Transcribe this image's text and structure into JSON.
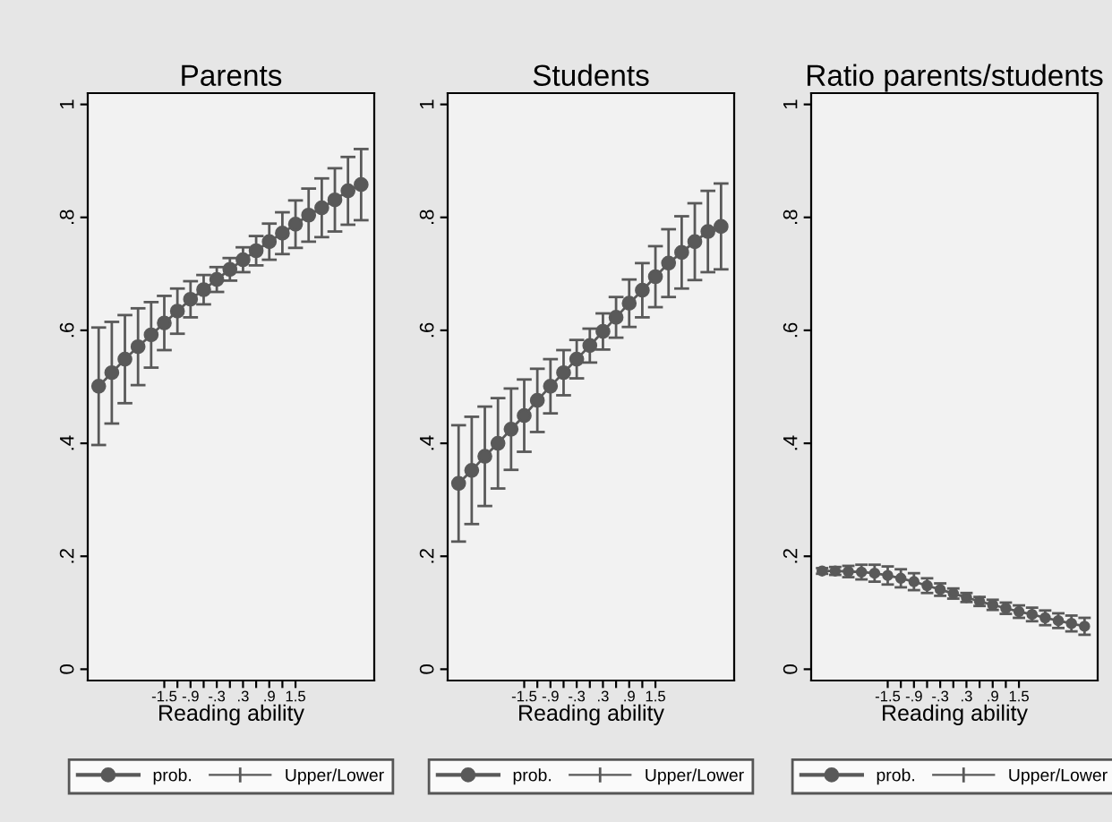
{
  "chart_data": [
    {
      "type": "line",
      "title": "Parents",
      "xlabel": "Reading ability",
      "legend": "bottom",
      "marker": "circle",
      "line_style": "solid",
      "annotations": [
        "Upper/Lower"
      ],
      "x": [
        -3,
        -2.7,
        -2.4,
        -2.1,
        -1.8,
        -1.5,
        -1.2,
        -0.9,
        -0.6,
        -0.3,
        0,
        0.3,
        0.6,
        0.9,
        1.2,
        1.5,
        1.8,
        2.1,
        2.4,
        2.7,
        3
      ],
      "xlim": [
        -3.25,
        3.3
      ],
      "xticks": [
        {
          "value": -1.5,
          "label": "-1.5"
        },
        {
          "value": -1.2,
          "label": null
        },
        {
          "value": -0.9,
          "label": "-.9"
        },
        {
          "value": -0.6,
          "label": null
        },
        {
          "value": -0.3,
          "label": "-.3"
        },
        {
          "value": 0,
          "label": null
        },
        {
          "value": 0.3,
          "label": ".3"
        },
        {
          "value": 0.6,
          "label": null
        },
        {
          "value": 0.9,
          "label": ".9"
        },
        {
          "value": 1.2,
          "label": null
        },
        {
          "value": 1.5,
          "label": "1.5"
        }
      ],
      "ylim": [
        -0.02,
        1.02
      ],
      "yticks": [
        {
          "value": 0,
          "label": "0"
        },
        {
          "value": 0.2,
          "label": ".2"
        },
        {
          "value": 0.4,
          "label": ".4"
        },
        {
          "value": 0.6,
          "label": ".6"
        },
        {
          "value": 0.8,
          "label": ".8"
        },
        {
          "value": 1,
          "label": "1"
        }
      ],
      "series": [
        {
          "name": "prob.",
          "color": "#595959",
          "values": [
            0.501,
            0.525,
            0.549,
            0.571,
            0.592,
            0.613,
            0.634,
            0.655,
            0.672,
            0.69,
            0.708,
            0.725,
            0.741,
            0.757,
            0.772,
            0.788,
            0.804,
            0.817,
            0.831,
            0.847,
            0.858
          ],
          "errors": [
            0.104,
            0.09,
            0.078,
            0.068,
            0.058,
            0.048,
            0.04,
            0.032,
            0.026,
            0.022,
            0.02,
            0.022,
            0.026,
            0.032,
            0.037,
            0.042,
            0.047,
            0.052,
            0.056,
            0.06,
            0.063
          ]
        }
      ]
    },
    {
      "type": "line",
      "title": "Students",
      "xlabel": "Reading ability",
      "legend": "bottom",
      "marker": "circle",
      "line_style": "solid",
      "annotations": [
        "Upper/Lower"
      ],
      "x": [
        -3,
        -2.7,
        -2.4,
        -2.1,
        -1.8,
        -1.5,
        -1.2,
        -0.9,
        -0.6,
        -0.3,
        0,
        0.3,
        0.6,
        0.9,
        1.2,
        1.5,
        1.8,
        2.1,
        2.4,
        2.7,
        3
      ],
      "xlim": [
        -3.25,
        3.3
      ],
      "xticks": [
        {
          "value": -1.5,
          "label": "-1.5"
        },
        {
          "value": -1.2,
          "label": null
        },
        {
          "value": -0.9,
          "label": "-.9"
        },
        {
          "value": -0.6,
          "label": null
        },
        {
          "value": -0.3,
          "label": "-.3"
        },
        {
          "value": 0,
          "label": null
        },
        {
          "value": 0.3,
          "label": ".3"
        },
        {
          "value": 0.6,
          "label": null
        },
        {
          "value": 0.9,
          "label": ".9"
        },
        {
          "value": 1.2,
          "label": null
        },
        {
          "value": 1.5,
          "label": "1.5"
        }
      ],
      "ylim": [
        -0.02,
        1.02
      ],
      "yticks": [
        {
          "value": 0,
          "label": "0"
        },
        {
          "value": 0.2,
          "label": ".2"
        },
        {
          "value": 0.4,
          "label": ".4"
        },
        {
          "value": 0.6,
          "label": ".6"
        },
        {
          "value": 0.8,
          "label": ".8"
        },
        {
          "value": 1,
          "label": "1"
        }
      ],
      "series": [
        {
          "name": "prob.",
          "color": "#595959",
          "values": [
            0.329,
            0.352,
            0.377,
            0.4,
            0.425,
            0.449,
            0.476,
            0.501,
            0.525,
            0.549,
            0.573,
            0.598,
            0.623,
            0.648,
            0.671,
            0.695,
            0.719,
            0.738,
            0.757,
            0.775,
            0.784
          ],
          "errors": [
            0.103,
            0.095,
            0.088,
            0.08,
            0.072,
            0.064,
            0.056,
            0.048,
            0.04,
            0.034,
            0.03,
            0.032,
            0.036,
            0.042,
            0.048,
            0.054,
            0.06,
            0.064,
            0.068,
            0.072,
            0.076
          ]
        }
      ]
    },
    {
      "type": "line",
      "title": "Ratio parents/students",
      "xlabel": "Reading ability",
      "legend": "bottom",
      "marker": "circle",
      "line_style": "solid",
      "annotations": [
        "Upper/Lower"
      ],
      "x": [
        -3,
        -2.7,
        -2.4,
        -2.1,
        -1.8,
        -1.5,
        -1.2,
        -0.9,
        -0.6,
        -0.3,
        0,
        0.3,
        0.6,
        0.9,
        1.2,
        1.5,
        1.8,
        2.1,
        2.4,
        2.7,
        3
      ],
      "xlim": [
        -3.25,
        3.3
      ],
      "xticks": [
        {
          "value": -1.5,
          "label": "-1.5"
        },
        {
          "value": -1.2,
          "label": null
        },
        {
          "value": -0.9,
          "label": "-.9"
        },
        {
          "value": -0.6,
          "label": null
        },
        {
          "value": -0.3,
          "label": "-.3"
        },
        {
          "value": 0,
          "label": null
        },
        {
          "value": 0.3,
          "label": ".3"
        },
        {
          "value": 0.6,
          "label": null
        },
        {
          "value": 0.9,
          "label": ".9"
        },
        {
          "value": 1.2,
          "label": null
        },
        {
          "value": 1.5,
          "label": "1.5"
        }
      ],
      "ylim": [
        -0.02,
        1.02
      ],
      "yticks": [
        {
          "value": 0,
          "label": "0"
        },
        {
          "value": 0.2,
          "label": ".2"
        },
        {
          "value": 0.4,
          "label": ".4"
        },
        {
          "value": 0.6,
          "label": ".6"
        },
        {
          "value": 0.8,
          "label": ".8"
        },
        {
          "value": 1,
          "label": "1"
        }
      ],
      "series": [
        {
          "name": "prob.",
          "color": "#595959",
          "values": [
            0.174,
            0.174,
            0.173,
            0.172,
            0.17,
            0.166,
            0.161,
            0.155,
            0.148,
            0.141,
            0.134,
            0.127,
            0.12,
            0.114,
            0.108,
            0.102,
            0.097,
            0.091,
            0.086,
            0.081,
            0.076
          ],
          "errors": [
            0.005,
            0.007,
            0.01,
            0.013,
            0.015,
            0.016,
            0.016,
            0.015,
            0.013,
            0.011,
            0.009,
            0.008,
            0.008,
            0.009,
            0.01,
            0.011,
            0.012,
            0.013,
            0.013,
            0.014,
            0.015
          ]
        }
      ]
    }
  ]
}
